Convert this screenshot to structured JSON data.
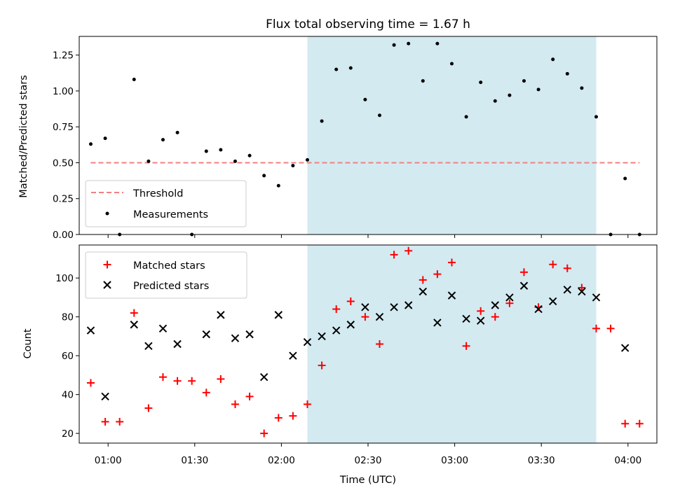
{
  "chart_data": [
    {
      "type": "scatter",
      "title": "Flux total observing time = 1.67 h",
      "xlabel": "",
      "ylabel": "Matched/Predicted stars",
      "ylim": [
        0,
        1.38
      ],
      "y_ticks": [
        "0.00",
        "0.25",
        "0.50",
        "0.75",
        "1.00",
        "1.25"
      ],
      "x_range": [
        "00:50",
        "04:10"
      ],
      "x_ticks": [
        "01:00",
        "01:30",
        "02:00",
        "02:30",
        "03:00",
        "03:30",
        "04:00"
      ],
      "shaded_interval": [
        "02:09",
        "03:49"
      ],
      "shade_color": "#d3eaf1",
      "threshold": {
        "name": "Threshold",
        "value": 0.5,
        "x": [
          "00:54",
          "04:04"
        ],
        "color": "#f08080"
      },
      "series": [
        {
          "name": "Measurements",
          "color": "#000000",
          "x": [
            "00:54",
            "00:59",
            "01:04",
            "01:09",
            "01:14",
            "01:19",
            "01:24",
            "01:29",
            "01:34",
            "01:39",
            "01:44",
            "01:49",
            "01:54",
            "01:59",
            "02:04",
            "02:09",
            "02:14",
            "02:19",
            "02:24",
            "02:29",
            "02:34",
            "02:39",
            "02:44",
            "02:49",
            "02:54",
            "02:59",
            "03:04",
            "03:09",
            "03:14",
            "03:19",
            "03:24",
            "03:29",
            "03:34",
            "03:39",
            "03:44",
            "03:49",
            "03:54",
            "03:59",
            "04:04"
          ],
          "y": [
            0.63,
            0.67,
            0.0,
            1.08,
            0.51,
            0.66,
            0.71,
            0.0,
            0.58,
            0.59,
            0.51,
            0.55,
            0.41,
            0.34,
            0.48,
            0.52,
            0.79,
            1.15,
            1.16,
            0.94,
            0.83,
            1.32,
            1.33,
            1.07,
            1.33,
            1.19,
            0.82,
            1.06,
            0.93,
            0.97,
            1.07,
            1.01,
            1.22,
            1.12,
            1.02,
            0.82,
            0.0,
            0.39,
            0.0
          ]
        }
      ],
      "legend_position": "lower-left"
    },
    {
      "type": "scatter",
      "title": "",
      "xlabel": "Time (UTC)",
      "ylabel": "Count",
      "ylim": [
        15,
        117
      ],
      "y_ticks": [
        "20",
        "40",
        "60",
        "80",
        "100"
      ],
      "x_range": [
        "00:50",
        "04:10"
      ],
      "x_ticks": [
        "01:00",
        "01:30",
        "02:00",
        "02:30",
        "03:00",
        "03:30",
        "04:00"
      ],
      "shaded_interval": [
        "02:09",
        "03:49"
      ],
      "shade_color": "#d3eaf1",
      "series": [
        {
          "name": "Matched stars",
          "marker": "+",
          "color": "#ff0000",
          "x": [
            "00:54",
            "00:59",
            "01:04",
            "01:09",
            "01:14",
            "01:19",
            "01:24",
            "01:29",
            "01:34",
            "01:39",
            "01:44",
            "01:49",
            "01:54",
            "01:59",
            "02:04",
            "02:09",
            "02:14",
            "02:19",
            "02:24",
            "02:29",
            "02:34",
            "02:39",
            "02:44",
            "02:49",
            "02:54",
            "02:59",
            "03:04",
            "03:09",
            "03:14",
            "03:19",
            "03:24",
            "03:29",
            "03:34",
            "03:39",
            "03:44",
            "03:49",
            "03:54",
            "03:59",
            "04:04"
          ],
          "y": [
            46,
            26,
            26,
            82,
            33,
            49,
            47,
            47,
            41,
            48,
            35,
            39,
            20,
            28,
            29,
            35,
            55,
            84,
            88,
            80,
            66,
            112,
            114,
            99,
            102,
            108,
            65,
            83,
            80,
            87,
            103,
            85,
            107,
            105,
            95,
            74,
            74,
            25,
            25
          ]
        },
        {
          "name": "Predicted stars",
          "marker": "x",
          "color": "#000000",
          "x": [
            "00:54",
            "00:59",
            "01:09",
            "01:14",
            "01:19",
            "01:24",
            "01:34",
            "01:39",
            "01:44",
            "01:49",
            "01:54",
            "01:59",
            "02:04",
            "02:09",
            "02:14",
            "02:19",
            "02:24",
            "02:29",
            "02:34",
            "02:39",
            "02:44",
            "02:49",
            "02:54",
            "02:59",
            "03:04",
            "03:09",
            "03:14",
            "03:19",
            "03:24",
            "03:29",
            "03:34",
            "03:39",
            "03:44",
            "03:49",
            "03:59"
          ],
          "y": [
            73,
            39,
            76,
            65,
            74,
            66,
            71,
            81,
            69,
            71,
            49,
            81,
            60,
            67,
            70,
            73,
            76,
            85,
            80,
            85,
            86,
            93,
            77,
            91,
            79,
            78,
            86,
            90,
            96,
            84,
            88,
            94,
            93,
            90,
            64
          ]
        }
      ],
      "legend_position": "upper-left"
    }
  ]
}
